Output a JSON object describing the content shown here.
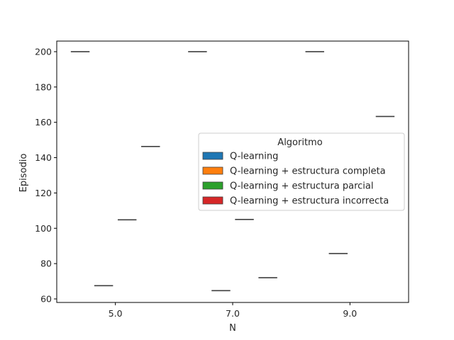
{
  "chart_data": {
    "type": "box",
    "xlabel": "N",
    "ylabel": "Episodio",
    "categories": [
      "5.0",
      "7.0",
      "9.0"
    ],
    "ylim": [
      58,
      206
    ],
    "yticks": [
      60,
      80,
      100,
      120,
      140,
      160,
      180,
      200
    ],
    "legend": {
      "title": "Algoritmo",
      "placement": "center-right"
    },
    "series": [
      {
        "name": "Q-learning",
        "color": "#1f77b4",
        "values": [
          200,
          200,
          200
        ]
      },
      {
        "name": "Q-learning + estructura completa",
        "color": "#ff7f0e",
        "values": [
          67.5,
          64.7,
          85.7
        ]
      },
      {
        "name": "Q-learning + estructura parcial",
        "color": "#2ca02c",
        "values": [
          104.8,
          105,
          null
        ]
      },
      {
        "name": "Q-learning + estructura incorrecta",
        "color": "#d62728",
        "values": [
          146.3,
          72,
          163.3
        ]
      }
    ],
    "median_line_color": "#3f3f3f"
  }
}
